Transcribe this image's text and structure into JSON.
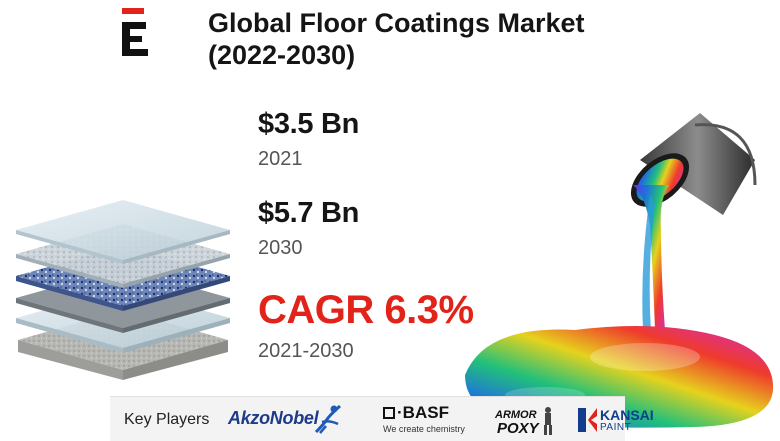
{
  "header": {
    "title_line1": "Global Floor Coatings Market",
    "title_line2": "(2022-2030)"
  },
  "stats": {
    "value_2021": "$3.5 Bn",
    "year_2021": "2021",
    "value_2030": "$5.7 Bn",
    "year_2030": "2030",
    "cagr": "CAGR 6.3%",
    "cagr_period": "2021-2030"
  },
  "key_players": {
    "label": "Key Players",
    "akzonobel": "AkzoNobel",
    "basf": "BASF",
    "basf_tagline": "We create chemistry",
    "armor_line1": "ARMOR",
    "armor_line2": "POXY",
    "kansai_line1": "KANSAI",
    "kansai_line2": "PAINT"
  },
  "colors": {
    "accent_red": "#e2231a",
    "text_dark": "#151515",
    "text_gray": "#555555"
  }
}
